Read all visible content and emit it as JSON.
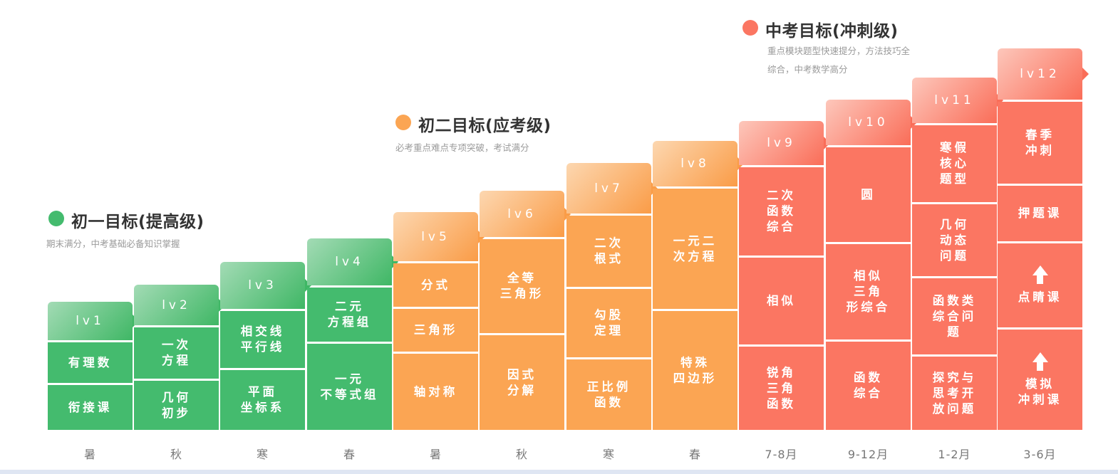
{
  "colors": {
    "green": "#44bb6e",
    "orange": "#fba553",
    "red": "#fb7662",
    "title": "#333333",
    "sub": "#9a9a9a",
    "period": "#777777"
  },
  "groups": [
    {
      "title": "初一目标(提高级)",
      "lines": [
        "期末满分，中考基础必备知识掌握"
      ],
      "color": "#44bb6e"
    },
    {
      "title": "初二目标(应考级)",
      "lines": [
        "必考重点难点专项突破，考试满分"
      ],
      "color": "#fba553"
    },
    {
      "title": "中考目标(冲刺级)",
      "lines": [
        "重点模块题型快速提分，方法技巧全",
        "综合，中考数学高分"
      ],
      "color": "#fb7662"
    }
  ],
  "columns": [
    {
      "level": "lv1",
      "period": "暑",
      "cells": [
        "有理数",
        "衔接课"
      ]
    },
    {
      "level": "lv2",
      "period": "秋",
      "cells": [
        "一次\n方程",
        "几何\n初步"
      ]
    },
    {
      "level": "lv3",
      "period": "寒",
      "cells": [
        "相交线\n平行线",
        "平面\n坐标系"
      ]
    },
    {
      "level": "lv4",
      "period": "春",
      "cells": [
        "二元\n方程组",
        "一元\n不等式组"
      ]
    },
    {
      "level": "lv5",
      "period": "暑",
      "cells": [
        "分式",
        "三角形",
        "轴对称"
      ]
    },
    {
      "level": "lv6",
      "period": "秋",
      "cells": [
        "全等\n三角形",
        "因式\n分解"
      ]
    },
    {
      "level": "lv7",
      "period": "寒",
      "cells": [
        "二次\n根式",
        "勾股\n定理",
        "正比例\n函数"
      ]
    },
    {
      "level": "lv8",
      "period": "春",
      "cells": [
        "一元二\n次方程",
        "特殊\n四边形"
      ]
    },
    {
      "level": "lv9",
      "period": "7-8月",
      "cells": [
        "二次\n函数\n综合",
        "相似",
        "锐角\n三角\n函数"
      ]
    },
    {
      "level": "lv10",
      "period": "9-12月",
      "cells": [
        "圆",
        "相似\n三角\n形综合",
        "函数\n综合"
      ]
    },
    {
      "level": "lv11",
      "period": "1-2月",
      "cells": [
        "寒假\n核心\n题型",
        "几何\n动态\n问题",
        "函数类\n综合问\n题",
        "探究与\n思考开\n放问题"
      ]
    },
    {
      "level": "lv12",
      "period": "3-6月",
      "cells": [
        "春季\n冲刺",
        "押题课",
        "点睛课",
        "模拟\n冲刺课"
      ]
    }
  ]
}
